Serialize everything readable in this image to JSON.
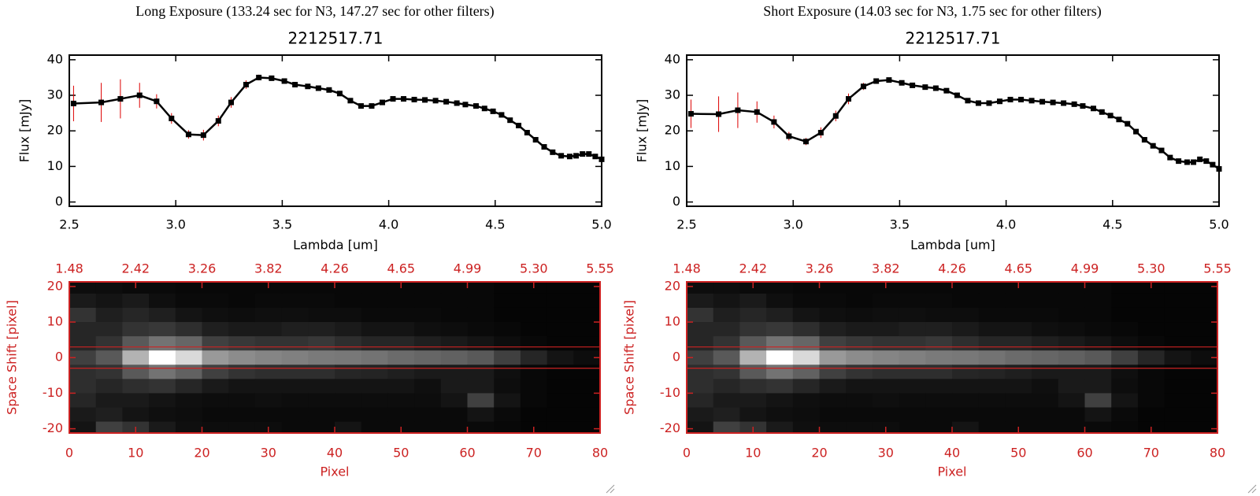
{
  "chart_data": [
    {
      "type": "line",
      "title": "Long Exposure (133.24 sec for N3, 147.27 sec for other filters)",
      "subtitle": "2212517.71",
      "xlabel": "Lambda [um]",
      "ylabel": "Flux [mJy]",
      "xlim": [
        2.5,
        5.0
      ],
      "ylim": [
        -1.2,
        41.3
      ],
      "xticks": [
        2.5,
        {
          "value": 3,
          "label": "3.0"
        },
        3.5,
        {
          "value": 4,
          "label": "4.0"
        },
        4.5,
        {
          "value": 5,
          "label": "5.0"
        }
      ],
      "yticks": [
        0,
        10,
        20,
        30,
        40
      ],
      "x": [
        2.52,
        2.65,
        2.74,
        2.83,
        2.91,
        2.98,
        3.06,
        3.13,
        3.2,
        3.26,
        3.33,
        3.39,
        3.45,
        3.51,
        3.56,
        3.62,
        3.67,
        3.72,
        3.77,
        3.82,
        3.87,
        3.92,
        3.97,
        4.02,
        4.07,
        4.12,
        4.17,
        4.22,
        4.27,
        4.32,
        4.36,
        4.41,
        4.45,
        4.49,
        4.53,
        4.57,
        4.61,
        4.65,
        4.69,
        4.73,
        4.77,
        4.81,
        4.85,
        4.88,
        4.91,
        4.94,
        4.97,
        5.0
      ],
      "series": [
        {
          "color": "#000000",
          "error_color": "#dd0000",
          "values": [
            27.7,
            28,
            29,
            30,
            28.3,
            23.5,
            19,
            18.8,
            22.8,
            28,
            33,
            35,
            34.8,
            34,
            33,
            32.5,
            32,
            31.5,
            30.5,
            28.5,
            27,
            27,
            28,
            29,
            29,
            28.8,
            28.7,
            28.5,
            28.2,
            27.8,
            27.4,
            27,
            26.3,
            25.5,
            24.5,
            23,
            21.5,
            19.5,
            17.5,
            15.5,
            14,
            13,
            12.8,
            13,
            13.5,
            13.5,
            12.8,
            12
          ],
          "errors": [
            5,
            5.5,
            5.5,
            3.5,
            2,
            1.5,
            1.2,
            1.5,
            1.5,
            1.5,
            1.2,
            0.8,
            0.6,
            0.6,
            0.6,
            0.6,
            0.6,
            0.6,
            0.6,
            0.6,
            0.6,
            0.6,
            0.6,
            0.6,
            0.6,
            0.6,
            0.6,
            0.6,
            0.6,
            0.6,
            0.6,
            0.6,
            0.6,
            0.6,
            0.6,
            0.6,
            0.6,
            0.6,
            0.6,
            0.6,
            0.6,
            0.6,
            0.6,
            0.6,
            0.6,
            0.6,
            0.6,
            0.6
          ]
        }
      ]
    },
    {
      "type": "heatmap",
      "xlabel": "Pixel",
      "ylabel": "Space Shift [pixel]",
      "color": "#cc2222",
      "xlim": [
        0,
        80
      ],
      "ylim": [
        -21.2,
        21.3
      ],
      "xticks": [
        0,
        10,
        20,
        30,
        40,
        50,
        60,
        70,
        80
      ],
      "x2ticks": [
        1.48,
        2.42,
        3.26,
        3.82,
        4.26,
        4.65,
        4.99,
        {
          "value": 5.3,
          "label": "5.30"
        },
        5.55
      ],
      "yticks": [
        -20,
        -10,
        0,
        10,
        20
      ],
      "hlines": [
        3,
        -3
      ],
      "zlim": [
        0,
        100
      ],
      "x": [
        2,
        6,
        10,
        14,
        18,
        22,
        26,
        30,
        34,
        38,
        42,
        46,
        50,
        54,
        58,
        62,
        66,
        70,
        74,
        78
      ],
      "y": [
        20,
        16,
        12,
        8,
        4,
        0,
        -4,
        -8,
        -12,
        -16,
        -20
      ],
      "z": [
        [
          5,
          5,
          4,
          4,
          3,
          3,
          3,
          3,
          3,
          3,
          3,
          3,
          3,
          3,
          3,
          3,
          2,
          2,
          2,
          2
        ],
        [
          10,
          8,
          10,
          6,
          4,
          4,
          3,
          4,
          4,
          4,
          3,
          3,
          3,
          3,
          3,
          3,
          2,
          2,
          2,
          2
        ],
        [
          20,
          12,
          15,
          12,
          8,
          6,
          5,
          6,
          6,
          5,
          5,
          4,
          4,
          4,
          3,
          3,
          2,
          2,
          2,
          2
        ],
        [
          15,
          15,
          20,
          22,
          18,
          12,
          10,
          10,
          12,
          12,
          10,
          8,
          8,
          6,
          5,
          4,
          3,
          2,
          2,
          2
        ],
        [
          15,
          20,
          35,
          45,
          40,
          25,
          22,
          20,
          20,
          22,
          18,
          15,
          15,
          12,
          10,
          8,
          5,
          3,
          2,
          2
        ],
        [
          25,
          35,
          70,
          100,
          85,
          60,
          55,
          52,
          50,
          48,
          47,
          45,
          42,
          40,
          38,
          35,
          25,
          15,
          8,
          5
        ],
        [
          18,
          20,
          35,
          45,
          38,
          25,
          20,
          18,
          18,
          18,
          15,
          14,
          12,
          10,
          10,
          10,
          6,
          3,
          2,
          2
        ],
        [
          18,
          15,
          18,
          20,
          15,
          10,
          8,
          8,
          8,
          8,
          8,
          8,
          8,
          6,
          10,
          10,
          5,
          3,
          2,
          2
        ],
        [
          15,
          10,
          10,
          8,
          6,
          5,
          5,
          6,
          5,
          5,
          5,
          5,
          5,
          5,
          8,
          25,
          8,
          3,
          2,
          2
        ],
        [
          10,
          12,
          8,
          6,
          5,
          4,
          4,
          4,
          4,
          4,
          4,
          4,
          4,
          4,
          4,
          8,
          4,
          2,
          2,
          2
        ],
        [
          8,
          25,
          20,
          10,
          6,
          5,
          5,
          5,
          4,
          4,
          8,
          4,
          4,
          4,
          4,
          4,
          3,
          2,
          2,
          2
        ]
      ]
    },
    {
      "type": "line",
      "title": "Short Exposure (14.03 sec for N3, 1.75 sec for other filters)",
      "subtitle": "2212517.71",
      "xlabel": "Lambda [um]",
      "ylabel": "Flux [mJy]",
      "xlim": [
        2.5,
        5.0
      ],
      "ylim": [
        -1.2,
        41.3
      ],
      "xticks": [
        2.5,
        {
          "value": 3,
          "label": "3.0"
        },
        3.5,
        {
          "value": 4,
          "label": "4.0"
        },
        4.5,
        {
          "value": 5,
          "label": "5.0"
        }
      ],
      "yticks": [
        0,
        10,
        20,
        30,
        40
      ],
      "x": [
        2.52,
        2.65,
        2.74,
        2.83,
        2.91,
        2.98,
        3.06,
        3.13,
        3.2,
        3.26,
        3.33,
        3.39,
        3.45,
        3.51,
        3.56,
        3.62,
        3.67,
        3.72,
        3.77,
        3.82,
        3.87,
        3.92,
        3.97,
        4.02,
        4.07,
        4.12,
        4.17,
        4.22,
        4.27,
        4.32,
        4.36,
        4.41,
        4.45,
        4.49,
        4.53,
        4.57,
        4.61,
        4.65,
        4.69,
        4.73,
        4.77,
        4.81,
        4.85,
        4.88,
        4.91,
        4.94,
        4.97,
        5.0
      ],
      "series": [
        {
          "color": "#000000",
          "error_color": "#dd0000",
          "values": [
            24.8,
            24.7,
            25.8,
            25.3,
            22.5,
            18.5,
            17,
            19.5,
            24.2,
            29,
            32.5,
            34,
            34.3,
            33.5,
            32.8,
            32.3,
            32,
            31.3,
            30,
            28.5,
            27.8,
            27.8,
            28.3,
            28.8,
            28.8,
            28.5,
            28.2,
            28,
            27.8,
            27.5,
            27,
            26.3,
            25.3,
            24.3,
            23.2,
            22,
            19.8,
            17.5,
            15.8,
            14.5,
            12.5,
            11.5,
            11.2,
            11.2,
            12,
            11.5,
            10.5,
            9.3
          ],
          "errors": [
            4,
            5,
            5,
            3,
            1.8,
            1.2,
            1,
            1.5,
            1.5,
            1.5,
            1,
            0.7,
            0.6,
            0.6,
            0.6,
            0.6,
            0.6,
            0.6,
            0.6,
            0.6,
            0.6,
            0.6,
            0.6,
            0.6,
            0.6,
            0.6,
            0.6,
            0.6,
            0.6,
            0.6,
            0.6,
            0.6,
            0.6,
            0.6,
            0.6,
            0.6,
            0.6,
            0.6,
            0.6,
            0.6,
            0.6,
            0.6,
            0.6,
            0.6,
            0.6,
            0.6,
            0.6,
            0.6
          ]
        }
      ]
    },
    {
      "type": "heatmap",
      "xlabel": "Pixel",
      "ylabel": "Space Shift [pixel]",
      "color": "#cc2222",
      "xlim": [
        0,
        80
      ],
      "ylim": [
        -21.2,
        21.3
      ],
      "xticks": [
        0,
        10,
        20,
        30,
        40,
        50,
        60,
        70,
        80
      ],
      "x2ticks": [
        1.48,
        2.42,
        3.26,
        3.82,
        4.26,
        4.65,
        4.99,
        {
          "value": 5.3,
          "label": "5.30"
        },
        5.55
      ],
      "yticks": [
        -20,
        -10,
        0,
        10,
        20
      ],
      "hlines": [
        3,
        -3
      ],
      "zlim": [
        0,
        100
      ],
      "x": [
        2,
        6,
        10,
        14,
        18,
        22,
        26,
        30,
        34,
        38,
        42,
        46,
        50,
        54,
        58,
        62,
        66,
        70,
        74,
        78
      ],
      "y": [
        20,
        16,
        12,
        8,
        4,
        0,
        -4,
        -8,
        -12,
        -16,
        -20
      ],
      "z": [
        [
          5,
          5,
          4,
          4,
          3,
          3,
          3,
          3,
          3,
          3,
          3,
          3,
          3,
          3,
          3,
          3,
          2,
          2,
          2,
          2
        ],
        [
          10,
          8,
          10,
          6,
          4,
          4,
          3,
          4,
          4,
          4,
          3,
          3,
          3,
          3,
          3,
          3,
          2,
          2,
          2,
          2
        ],
        [
          20,
          12,
          15,
          12,
          8,
          6,
          5,
          6,
          6,
          5,
          5,
          4,
          4,
          4,
          3,
          3,
          2,
          2,
          2,
          2
        ],
        [
          15,
          15,
          20,
          22,
          18,
          12,
          10,
          10,
          12,
          12,
          10,
          8,
          8,
          6,
          5,
          4,
          3,
          2,
          2,
          2
        ],
        [
          15,
          20,
          35,
          45,
          40,
          25,
          22,
          20,
          20,
          22,
          18,
          15,
          15,
          12,
          10,
          8,
          5,
          3,
          2,
          2
        ],
        [
          25,
          35,
          70,
          100,
          85,
          60,
          55,
          52,
          50,
          48,
          47,
          45,
          42,
          40,
          38,
          35,
          25,
          15,
          8,
          5
        ],
        [
          18,
          20,
          35,
          45,
          38,
          25,
          20,
          18,
          18,
          18,
          15,
          14,
          12,
          10,
          10,
          10,
          6,
          3,
          2,
          2
        ],
        [
          18,
          15,
          18,
          20,
          15,
          10,
          8,
          8,
          8,
          8,
          8,
          8,
          8,
          6,
          10,
          10,
          5,
          3,
          2,
          2
        ],
        [
          15,
          10,
          10,
          8,
          6,
          5,
          5,
          6,
          5,
          5,
          5,
          5,
          5,
          5,
          8,
          25,
          8,
          3,
          2,
          2
        ],
        [
          10,
          12,
          8,
          6,
          5,
          4,
          4,
          4,
          4,
          4,
          4,
          4,
          4,
          4,
          4,
          8,
          4,
          2,
          2,
          2
        ],
        [
          8,
          25,
          20,
          10,
          6,
          5,
          5,
          5,
          4,
          4,
          8,
          4,
          4,
          4,
          4,
          4,
          3,
          2,
          2,
          2
        ]
      ]
    }
  ]
}
